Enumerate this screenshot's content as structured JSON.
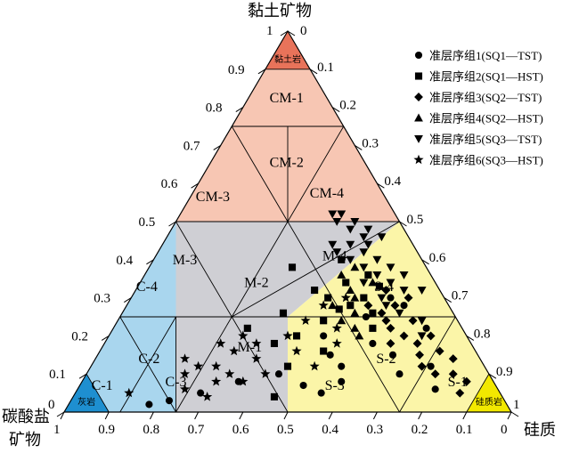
{
  "chart_data": {
    "type": "scatter",
    "subtype": "ternary",
    "axes": {
      "top": {
        "label": "黏土矿物",
        "ticks": [
          "1",
          "0.9",
          "0.8",
          "0.7",
          "0.6",
          "0.5",
          "0.4",
          "0.3",
          "0.2",
          "0.1",
          "0"
        ]
      },
      "left": {
        "label": "碳酸盐矿物",
        "ticks": [
          "1",
          "0.9",
          "0.8",
          "0.7",
          "0.6",
          "0.5",
          "0.4",
          "0.3",
          "0.2",
          "0.1",
          "0"
        ]
      },
      "right": {
        "label": "硅质",
        "ticks": [
          "0",
          "0.1",
          "0.2",
          "0.3",
          "0.4",
          "0.5",
          "0.6",
          "0.7",
          "0.8",
          "0.9",
          "1"
        ]
      }
    },
    "apex_labels": {
      "top_left": "1",
      "top_right": "0",
      "bottom_left": "0",
      "bottom_right": "1"
    },
    "regions": [
      {
        "name": "黏土岩",
        "color": "#e8735a"
      },
      {
        "name": "CM-1",
        "color": "#f7c6b3"
      },
      {
        "name": "CM-2",
        "color": "#f7c6b3"
      },
      {
        "name": "CM-3",
        "color": "#f7c6b3"
      },
      {
        "name": "CM-4",
        "color": "#f7c6b3"
      },
      {
        "name": "M-1",
        "color": "#cfcfd4"
      },
      {
        "name": "M-2",
        "color": "#cfcfd4"
      },
      {
        "name": "M-3",
        "color": "#cfcfd4"
      },
      {
        "name": "M-4",
        "color": "#cfcfd4"
      },
      {
        "name": "C-1",
        "color": "#a9d6ee"
      },
      {
        "name": "C-2",
        "color": "#a9d6ee"
      },
      {
        "name": "C-3",
        "color": "#a9d6ee"
      },
      {
        "name": "C-4",
        "color": "#a9d6ee"
      },
      {
        "name": "灰岩",
        "color": "#1e8fd0"
      },
      {
        "name": "S-1",
        "color": "#fbf5a8"
      },
      {
        "name": "S-2",
        "color": "#fbf5a8"
      },
      {
        "name": "S-3",
        "color": "#fbf5a8"
      },
      {
        "name": "S-4",
        "color": "#fbf5a8"
      },
      {
        "name": "硅质岩",
        "color": "#f2e800"
      }
    ],
    "legend": {
      "placement": "top-right",
      "entries": [
        {
          "marker": "circle",
          "label": "准层序组1(SQ1—TST)"
        },
        {
          "marker": "square",
          "label": "准层序组2(SQ1—HST)"
        },
        {
          "marker": "diamond",
          "label": "准层序组3(SQ2—TST)"
        },
        {
          "marker": "triangle-up",
          "label": "准层序组4(SQ2—HST)"
        },
        {
          "marker": "triangle-down",
          "label": "准层序组5(SQ3—TST)"
        },
        {
          "marker": "star",
          "label": "准层序组6(SQ3—HST)"
        }
      ]
    },
    "series": [
      {
        "marker": "circle",
        "points": [
          [
            0.02,
            0.18
          ],
          [
            0.03,
            0.22
          ],
          [
            0.05,
            0.28
          ],
          [
            0.08,
            0.35
          ],
          [
            0.1,
            0.43
          ],
          [
            0.07,
            0.5
          ],
          [
            0.15,
            0.52
          ],
          [
            0.12,
            0.56
          ],
          [
            0.2,
            0.48
          ],
          [
            0.25,
            0.55
          ],
          [
            0.18,
            0.6
          ],
          [
            0.28,
            0.62
          ],
          [
            0.08,
            0.58
          ],
          [
            0.22,
            0.7
          ],
          [
            0.1,
            0.7
          ],
          [
            0.05,
            0.55
          ],
          [
            0.3,
            0.58
          ],
          [
            0.15,
            0.66
          ],
          [
            0.06,
            0.8
          ],
          [
            0.12,
            0.76
          ]
        ]
      },
      {
        "marker": "square",
        "points": [
          [
            0.38,
            0.32
          ],
          [
            0.26,
            0.36
          ],
          [
            0.22,
            0.3
          ],
          [
            0.3,
            0.44
          ],
          [
            0.34,
            0.46
          ],
          [
            0.28,
            0.5
          ],
          [
            0.2,
            0.42
          ],
          [
            0.24,
            0.46
          ],
          [
            0.18,
            0.38
          ],
          [
            0.32,
            0.4
          ],
          [
            0.36,
            0.5
          ],
          [
            0.3,
            0.52
          ],
          [
            0.26,
            0.56
          ],
          [
            0.22,
            0.58
          ],
          [
            0.12,
            0.44
          ],
          [
            0.16,
            0.5
          ],
          [
            0.04,
            0.45
          ],
          [
            0.4,
            0.42
          ],
          [
            0.33,
            0.54
          ],
          [
            0.27,
            0.48
          ]
        ]
      },
      {
        "marker": "diamond",
        "points": [
          [
            0.28,
            0.6
          ],
          [
            0.24,
            0.66
          ],
          [
            0.2,
            0.72
          ],
          [
            0.16,
            0.76
          ],
          [
            0.14,
            0.8
          ],
          [
            0.1,
            0.82
          ],
          [
            0.08,
            0.86
          ],
          [
            0.22,
            0.62
          ],
          [
            0.18,
            0.7
          ],
          [
            0.3,
            0.62
          ],
          [
            0.12,
            0.74
          ],
          [
            0.26,
            0.58
          ],
          [
            0.05,
            0.86
          ],
          [
            0.15,
            0.72
          ],
          [
            0.2,
            0.66
          ],
          [
            0.1,
            0.78
          ],
          [
            0.32,
            0.56
          ],
          [
            0.28,
            0.54
          ],
          [
            0.18,
            0.64
          ],
          [
            0.24,
            0.6
          ]
        ]
      },
      {
        "marker": "triangle-up",
        "points": [
          [
            0.3,
            0.5
          ],
          [
            0.26,
            0.52
          ],
          [
            0.34,
            0.52
          ],
          [
            0.22,
            0.54
          ],
          [
            0.38,
            0.46
          ],
          [
            0.32,
            0.48
          ],
          [
            0.28,
            0.46
          ],
          [
            0.2,
            0.56
          ],
          [
            0.36,
            0.44
          ],
          [
            0.24,
            0.5
          ]
        ]
      },
      {
        "marker": "triangle-down",
        "points": [
          [
            0.52,
            0.34
          ],
          [
            0.52,
            0.36
          ],
          [
            0.5,
            0.4
          ],
          [
            0.48,
            0.44
          ],
          [
            0.46,
            0.48
          ],
          [
            0.44,
            0.42
          ],
          [
            0.42,
            0.46
          ],
          [
            0.4,
            0.5
          ],
          [
            0.38,
            0.54
          ],
          [
            0.36,
            0.58
          ],
          [
            0.34,
            0.56
          ],
          [
            0.32,
            0.6
          ],
          [
            0.44,
            0.38
          ],
          [
            0.48,
            0.4
          ],
          [
            0.42,
            0.4
          ],
          [
            0.38,
            0.48
          ],
          [
            0.34,
            0.5
          ],
          [
            0.4,
            0.44
          ],
          [
            0.46,
            0.44
          ],
          [
            0.3,
            0.56
          ],
          [
            0.28,
            0.58
          ],
          [
            0.36,
            0.52
          ],
          [
            0.5,
            0.36
          ],
          [
            0.44,
            0.46
          ],
          [
            0.26,
            0.62
          ],
          [
            0.32,
            0.64
          ],
          [
            0.2,
            0.7
          ],
          [
            0.24,
            0.68
          ]
        ]
      },
      {
        "marker": "star",
        "points": [
          [
            0.18,
            0.26
          ],
          [
            0.2,
            0.3
          ],
          [
            0.16,
            0.3
          ],
          [
            0.12,
            0.28
          ],
          [
            0.1,
            0.32
          ],
          [
            0.14,
            0.36
          ],
          [
            0.08,
            0.3
          ],
          [
            0.06,
            0.24
          ],
          [
            0.18,
            0.34
          ],
          [
            0.12,
            0.24
          ],
          [
            0.05,
            0.12
          ],
          [
            0.1,
            0.4
          ],
          [
            0.16,
            0.44
          ],
          [
            0.2,
            0.4
          ],
          [
            0.22,
            0.5
          ],
          [
            0.18,
            0.52
          ],
          [
            0.12,
            0.5
          ],
          [
            0.28,
            0.44
          ],
          [
            0.24,
            0.42
          ],
          [
            0.08,
            0.36
          ],
          [
            0.04,
            0.3
          ],
          [
            0.14,
            0.2
          ],
          [
            0.1,
            0.22
          ],
          [
            0.3,
            0.48
          ]
        ]
      }
    ]
  }
}
